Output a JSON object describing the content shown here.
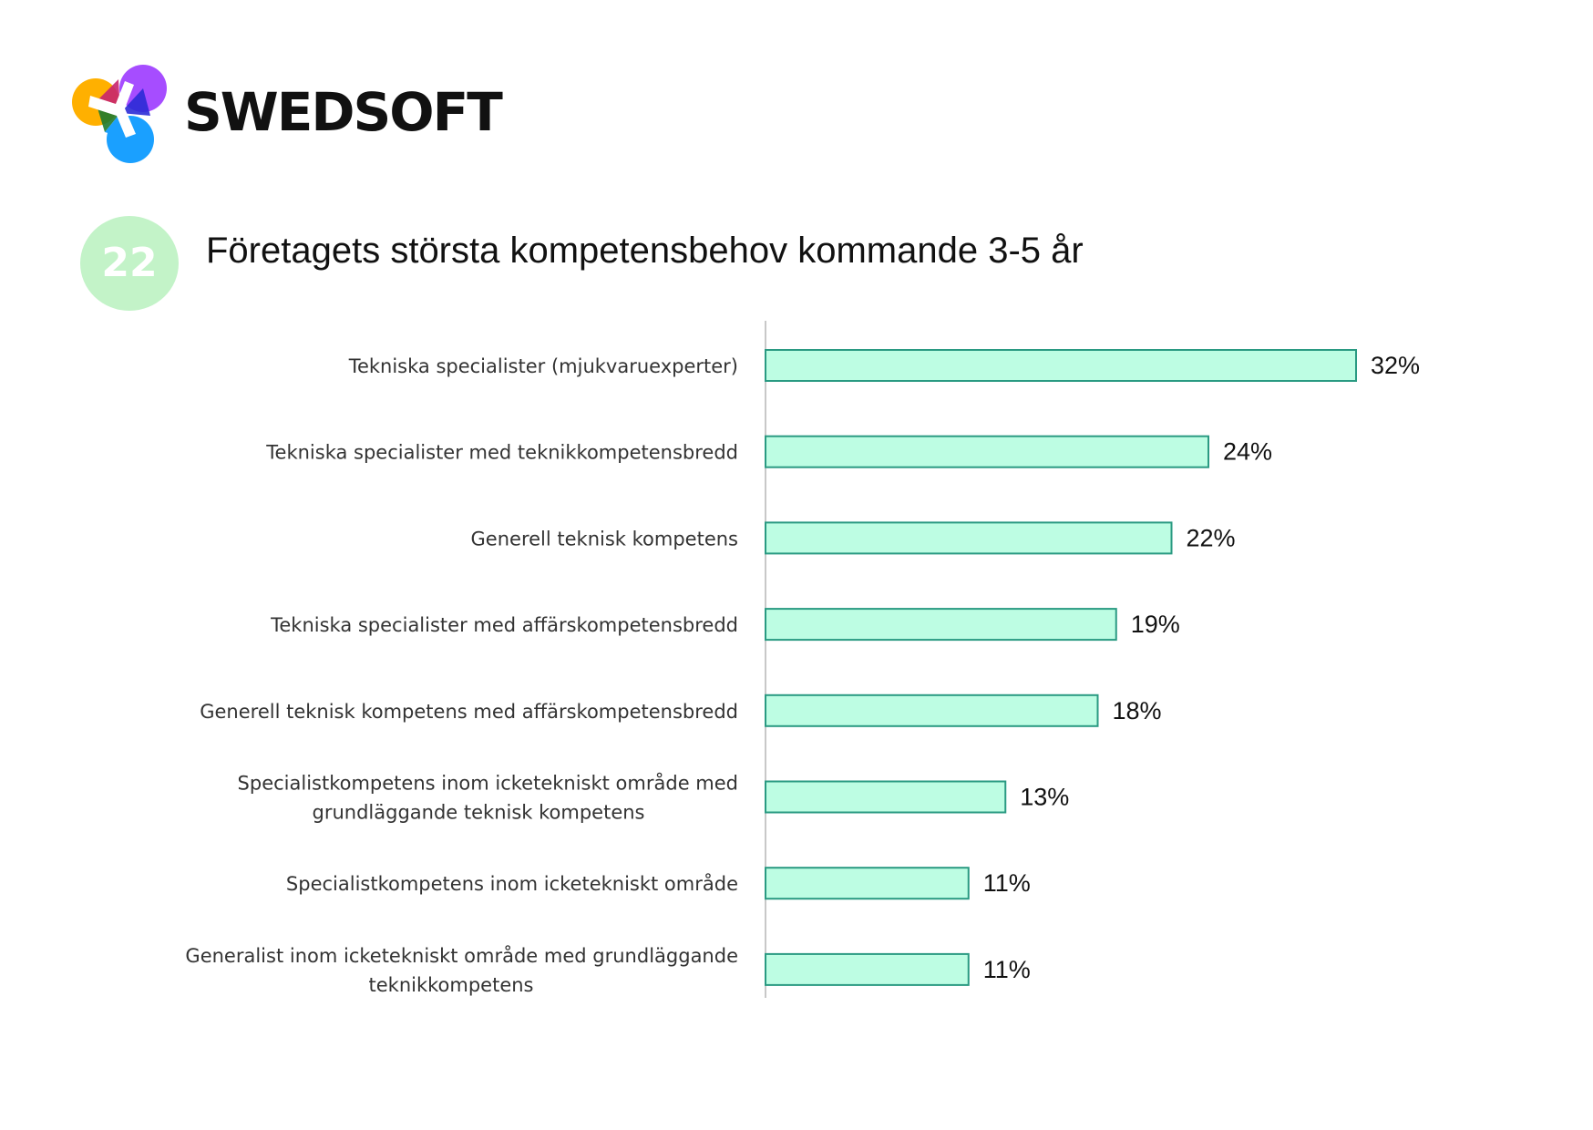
{
  "header": {
    "brand": "SWEDSOFT",
    "badge": "22",
    "title": "Företagets största kompetensbehov kommande 3-5 år"
  },
  "colors": {
    "bar_fill": "#bdfde3",
    "bar_stroke": "#2a9a82",
    "axis": "#c8c8c8",
    "badge_bg": "#c3f3c8",
    "text": "#111111"
  },
  "icons": {
    "logo": "swedsoft-logo-icon"
  },
  "chart_data": {
    "type": "bar",
    "orientation": "horizontal",
    "title": "Företagets största kompetensbehov kommande 3-5 år",
    "xlabel": "",
    "ylabel": "",
    "xlim": [
      0,
      32
    ],
    "grid": false,
    "legend": "none",
    "categories": [
      "Tekniska specialister (mjukvaruexperter)",
      "Tekniska specialister med teknikkompetensbredd",
      "Generell teknisk kompetens",
      "Tekniska specialister med affärskompetensbredd",
      "Generell teknisk kompetens med affärskompetensbredd",
      "Specialistkompetens inom icketekniskt område med grundläggande teknisk kompetens",
      "Specialistkompetens inom icketekniskt område",
      "Generalist inom icketekniskt område med grundläggande teknikkompetens"
    ],
    "category_lines": [
      [
        "Tekniska specialister (mjukvaruexperter)"
      ],
      [
        "Tekniska specialister med teknikkompetensbredd"
      ],
      [
        "Generell teknisk kompetens"
      ],
      [
        "Tekniska specialister med affärskompetensbredd"
      ],
      [
        "Generell teknisk kompetens med affärskompetensbredd"
      ],
      [
        "Specialistkompetens inom icketekniskt område med",
        "grundläggande teknisk kompetens"
      ],
      [
        "Specialistkompetens inom icketekniskt område"
      ],
      [
        "Generalist inom icketekniskt område med grundläggande",
        "teknikkompetens"
      ]
    ],
    "values": [
      32,
      24,
      22,
      19,
      18,
      13,
      11,
      11
    ],
    "value_labels": [
      "32%",
      "24%",
      "22%",
      "19%",
      "18%",
      "13%",
      "11%",
      "11%"
    ]
  }
}
